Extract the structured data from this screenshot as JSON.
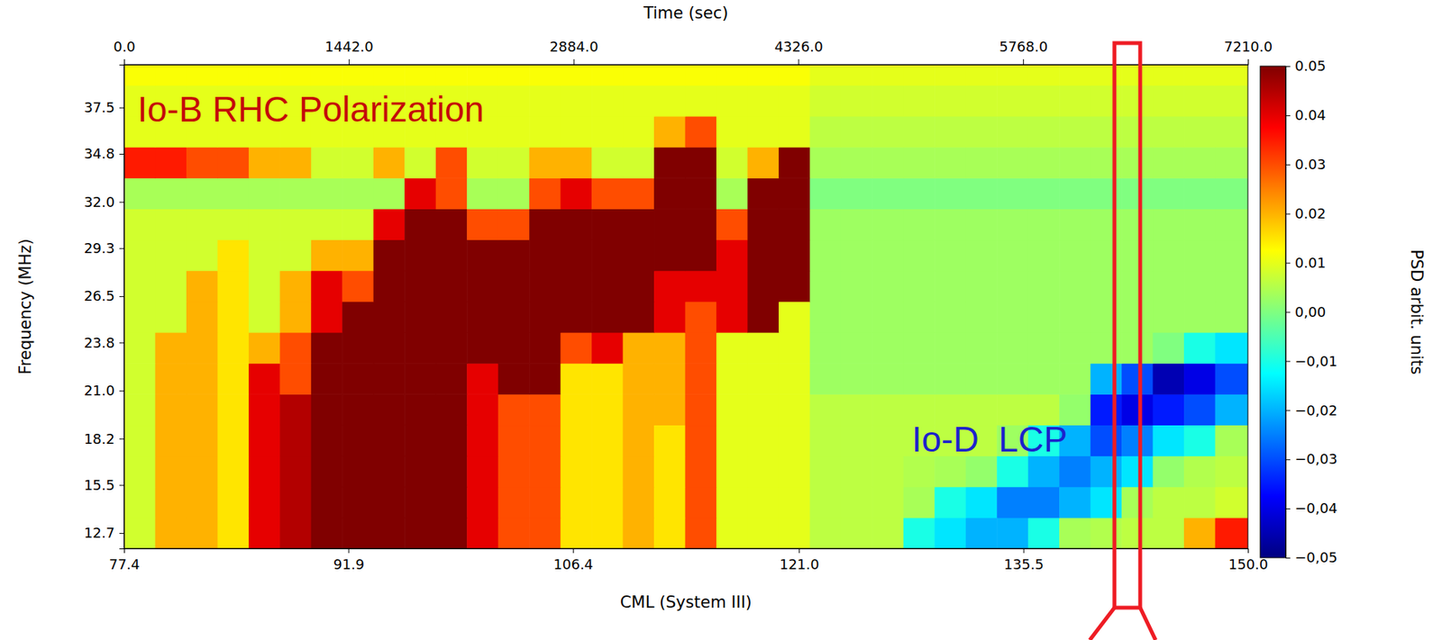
{
  "chart_data": {
    "type": "heatmap",
    "x_label": "CML (System III)",
    "xlim": [
      77.4,
      150.0
    ],
    "xticks": [
      77.4,
      91.9,
      106.4,
      {
        "value": 121,
        "label": "121.0"
      },
      135.5,
      {
        "value": 150,
        "label": "150.0"
      }
    ],
    "x2_label": "Time (sec)",
    "x2lim": [
      0,
      7210
    ],
    "x2ticks": [
      {
        "value": 0,
        "label": "0.0"
      },
      {
        "value": 1442,
        "label": "1442.0"
      },
      {
        "value": 2884,
        "label": "2884.0"
      },
      {
        "value": 4326,
        "label": "4326.0"
      },
      {
        "value": 5768,
        "label": "5768.0"
      },
      {
        "value": 7210,
        "label": "7210.0"
      }
    ],
    "y_label": "Frequency (MHz)",
    "ylim": [
      11.8,
      40.0
    ],
    "yticks": [
      12.7,
      15.5,
      18.2,
      {
        "value": 21,
        "label": "21.0"
      },
      23.8,
      26.5,
      29.3,
      {
        "value": 32,
        "label": "32.0"
      },
      34.8,
      37.5
    ],
    "time_bins": [
      0,
      200,
      400,
      600,
      800,
      1000,
      1200,
      1400,
      1600,
      1800,
      2000,
      2200,
      2400,
      2600,
      2800,
      3000,
      3200,
      3400,
      3600,
      3800,
      4000,
      4200,
      4400,
      4600,
      4800,
      5000,
      5200,
      5400,
      5600,
      5800,
      6000,
      6200,
      6400,
      6600,
      6800,
      7000,
      7210
    ],
    "frequency_bins": [
      11.8,
      13.6,
      15.4,
      17.2,
      19.0,
      20.8,
      22.6,
      24.4,
      26.2,
      28.0,
      29.8,
      31.6,
      33.4,
      35.2,
      37.0,
      38.8,
      40.0
    ],
    "cells": [
      [
        0.008,
        0.02,
        0.02,
        0.015,
        0.04,
        0.045,
        0.05,
        0.05,
        0.05,
        0.05,
        0.05,
        0.04,
        0.03,
        0.03,
        0.015,
        0.015,
        0.02,
        0.015,
        0.03,
        0.01,
        0.01,
        0.01,
        0.006,
        0.006,
        0.006,
        -0.01,
        -0.015,
        -0.02,
        -0.02,
        -0.01,
        0.004,
        0.005,
        0.006,
        0.006,
        0.02,
        0.035
      ],
      [
        0.008,
        0.02,
        0.02,
        0.015,
        0.04,
        0.045,
        0.05,
        0.05,
        0.05,
        0.05,
        0.05,
        0.04,
        0.03,
        0.03,
        0.015,
        0.015,
        0.02,
        0.015,
        0.03,
        0.01,
        0.01,
        0.01,
        0.006,
        0.006,
        0.006,
        0.004,
        -0.01,
        -0.015,
        -0.025,
        -0.025,
        -0.02,
        -0.015,
        0.004,
        0.006,
        0.006,
        0.008
      ],
      [
        0.008,
        0.02,
        0.02,
        0.015,
        0.04,
        0.045,
        0.05,
        0.05,
        0.05,
        0.05,
        0.05,
        0.04,
        0.03,
        0.03,
        0.015,
        0.015,
        0.02,
        0.015,
        0.03,
        0.01,
        0.01,
        0.01,
        0.006,
        0.006,
        0.006,
        0.005,
        0.004,
        0.002,
        -0.01,
        -0.02,
        -0.025,
        -0.02,
        -0.015,
        0.002,
        0.005,
        0.006
      ],
      [
        0.008,
        0.02,
        0.02,
        0.015,
        0.04,
        0.045,
        0.05,
        0.05,
        0.05,
        0.05,
        0.05,
        0.04,
        0.03,
        0.03,
        0.015,
        0.015,
        0.02,
        0.015,
        0.03,
        0.01,
        0.01,
        0.01,
        0.006,
        0.006,
        0.006,
        0.006,
        0.006,
        0.006,
        0.003,
        -0.01,
        -0.02,
        -0.03,
        -0.025,
        -0.015,
        -0.01,
        0.004
      ],
      [
        0.008,
        0.02,
        0.02,
        0.015,
        0.04,
        0.045,
        0.05,
        0.05,
        0.05,
        0.05,
        0.05,
        0.04,
        0.03,
        0.03,
        0.015,
        0.015,
        0.02,
        0.02,
        0.03,
        0.01,
        0.01,
        0.01,
        0.006,
        0.006,
        0.006,
        0.006,
        0.006,
        0.006,
        0.006,
        0.006,
        0.002,
        -0.035,
        -0.04,
        -0.035,
        -0.03,
        -0.02
      ],
      [
        0.008,
        0.02,
        0.02,
        0.015,
        0.04,
        0.03,
        0.05,
        0.05,
        0.05,
        0.05,
        0.05,
        0.04,
        0.05,
        0.05,
        0.015,
        0.015,
        0.02,
        0.02,
        0.03,
        0.01,
        0.01,
        0.01,
        0.003,
        0.003,
        0.003,
        0.003,
        0.003,
        0.003,
        0.003,
        0.003,
        0.003,
        -0.02,
        -0.03,
        -0.045,
        -0.04,
        -0.03
      ],
      [
        0.008,
        0.02,
        0.02,
        0.015,
        0.02,
        0.03,
        0.05,
        0.05,
        0.05,
        0.05,
        0.05,
        0.05,
        0.05,
        0.05,
        0.03,
        0.04,
        0.02,
        0.02,
        0.03,
        0.01,
        0.01,
        0.01,
        0.003,
        0.003,
        0.003,
        0.003,
        0.003,
        0.003,
        0.003,
        0.003,
        0.003,
        0.003,
        0.003,
        0.0,
        -0.01,
        -0.015
      ],
      [
        0.008,
        0.008,
        0.02,
        0.015,
        0.008,
        0.02,
        0.04,
        0.05,
        0.05,
        0.05,
        0.05,
        0.05,
        0.05,
        0.05,
        0.05,
        0.05,
        0.05,
        0.04,
        0.03,
        0.04,
        0.05,
        0.01,
        0.003,
        0.003,
        0.003,
        0.003,
        0.003,
        0.003,
        0.003,
        0.003,
        0.003,
        0.003,
        0.003,
        0.003,
        0.003,
        0.003
      ],
      [
        0.008,
        0.008,
        0.02,
        0.015,
        0.008,
        0.02,
        0.04,
        0.03,
        0.05,
        0.05,
        0.05,
        0.05,
        0.05,
        0.05,
        0.05,
        0.05,
        0.05,
        0.04,
        0.04,
        0.04,
        0.05,
        0.05,
        0.003,
        0.003,
        0.003,
        0.003,
        0.003,
        0.003,
        0.003,
        0.003,
        0.003,
        0.003,
        0.003,
        0.003,
        0.003,
        0.003
      ],
      [
        0.008,
        0.008,
        0.008,
        0.015,
        0.008,
        0.008,
        0.02,
        0.02,
        0.05,
        0.05,
        0.05,
        0.05,
        0.05,
        0.05,
        0.05,
        0.05,
        0.05,
        0.05,
        0.05,
        0.04,
        0.05,
        0.05,
        0.003,
        0.003,
        0.003,
        0.003,
        0.003,
        0.003,
        0.003,
        0.003,
        0.003,
        0.003,
        0.003,
        0.003,
        0.003,
        0.003
      ],
      [
        0.008,
        0.008,
        0.008,
        0.008,
        0.008,
        0.008,
        0.008,
        0.008,
        0.04,
        0.05,
        0.05,
        0.03,
        0.03,
        0.05,
        0.05,
        0.05,
        0.05,
        0.05,
        0.05,
        0.03,
        0.05,
        0.05,
        0.003,
        0.003,
        0.003,
        0.003,
        0.003,
        0.003,
        0.003,
        0.003,
        0.003,
        0.003,
        0.003,
        0.003,
        0.003,
        0.003
      ],
      [
        0.004,
        0.004,
        0.004,
        0.004,
        0.004,
        0.004,
        0.004,
        0.004,
        0.004,
        0.04,
        0.03,
        0.004,
        0.004,
        0.03,
        0.04,
        0.03,
        0.03,
        0.05,
        0.05,
        0.004,
        0.05,
        0.05,
        0.0,
        0.0,
        0.0,
        0.0,
        0.0,
        0.0,
        0.0,
        0.0,
        0.0,
        0.0,
        0.0,
        0.0,
        0.0,
        0.0
      ],
      [
        0.035,
        0.035,
        0.03,
        0.03,
        0.02,
        0.02,
        0.008,
        0.008,
        0.02,
        0.008,
        0.03,
        0.008,
        0.008,
        0.02,
        0.02,
        0.008,
        0.008,
        0.05,
        0.05,
        0.008,
        0.02,
        0.05,
        0.004,
        0.004,
        0.004,
        0.004,
        0.004,
        0.004,
        0.004,
        0.004,
        0.004,
        0.004,
        0.004,
        0.004,
        0.004,
        0.004
      ],
      [
        0.01,
        0.01,
        0.01,
        0.01,
        0.01,
        0.01,
        0.01,
        0.01,
        0.01,
        0.01,
        0.01,
        0.01,
        0.01,
        0.01,
        0.01,
        0.01,
        0.01,
        0.02,
        0.03,
        0.01,
        0.01,
        0.01,
        0.006,
        0.006,
        0.006,
        0.006,
        0.006,
        0.006,
        0.006,
        0.006,
        0.006,
        0.006,
        0.006,
        0.006,
        0.006,
        0.006
      ],
      [
        0.01,
        0.01,
        0.01,
        0.01,
        0.01,
        0.01,
        0.01,
        0.01,
        0.01,
        0.01,
        0.01,
        0.01,
        0.01,
        0.01,
        0.01,
        0.01,
        0.01,
        0.01,
        0.01,
        0.01,
        0.01,
        0.01,
        0.008,
        0.008,
        0.008,
        0.008,
        0.008,
        0.008,
        0.008,
        0.008,
        0.008,
        0.008,
        0.008,
        0.008,
        0.008,
        0.008
      ],
      [
        0.012,
        0.012,
        0.012,
        0.012,
        0.012,
        0.012,
        0.012,
        0.012,
        0.012,
        0.012,
        0.012,
        0.012,
        0.012,
        0.012,
        0.012,
        0.012,
        0.012,
        0.012,
        0.012,
        0.012,
        0.012,
        0.012,
        0.01,
        0.01,
        0.01,
        0.01,
        0.01,
        0.01,
        0.01,
        0.01,
        0.01,
        0.01,
        0.01,
        0.01,
        0.01,
        0.01
      ]
    ],
    "colorbar": {
      "label": "PSD arbit. units",
      "range": [
        -0.05,
        0.05
      ],
      "ticks": [
        0.05,
        0.04,
        0.03,
        0.02,
        0.01,
        {
          "value": 0,
          "label": "0,00"
        },
        {
          "value": -0.01,
          "label": "−0,01"
        },
        {
          "value": -0.02,
          "label": "−0,02"
        },
        {
          "value": -0.03,
          "label": "−0,03"
        },
        {
          "value": -0.04,
          "label": "−0,04"
        },
        {
          "value": -0.05,
          "label": "−0,05"
        }
      ]
    },
    "annotations": [
      {
        "text": "Io-B RHC Polarization",
        "color": "#c40a0a"
      },
      {
        "text": "Io-D  LCP",
        "color": "#1c22cc"
      }
    ],
    "highlight": {
      "time": [
        6354,
        6519
      ],
      "color": "#ee1c24"
    },
    "grid": false
  }
}
